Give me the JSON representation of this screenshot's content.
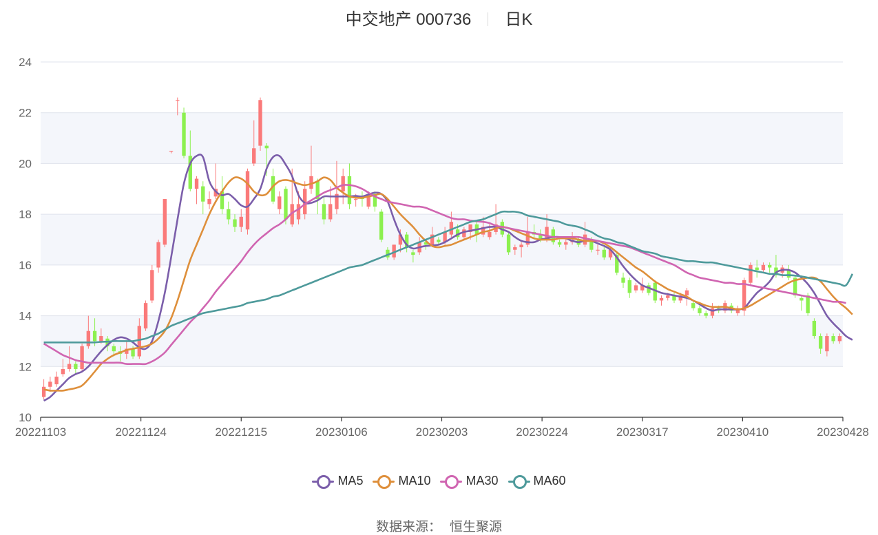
{
  "title": {
    "name": "中交地产 000736",
    "period": "日K"
  },
  "source": {
    "label": "数据来源：",
    "value": "恒生聚源"
  },
  "chart_data": {
    "type": "candlestick",
    "ylim": [
      10,
      24
    ],
    "yticks": [
      10,
      12,
      14,
      16,
      18,
      20,
      22,
      24
    ],
    "grid": true,
    "banded_background": true,
    "xtick_labels": [
      "20221103",
      "20221124",
      "20221215",
      "20230106",
      "20230203",
      "20230224",
      "20230317",
      "20230410",
      "20230428"
    ],
    "colors": {
      "up": "#fa7a7a",
      "down": "#8cf04f"
    },
    "candles": [
      [
        10.8,
        11.2,
        11.5,
        10.7
      ],
      [
        11.2,
        11.4,
        11.6,
        11.0
      ],
      [
        11.3,
        11.6,
        11.8,
        11.2
      ],
      [
        11.7,
        11.9,
        12.3,
        11.6
      ],
      [
        11.9,
        12.1,
        12.8,
        11.8
      ],
      [
        12.1,
        11.9,
        12.2,
        11.7
      ],
      [
        11.9,
        12.8,
        12.9,
        11.8
      ],
      [
        12.8,
        13.4,
        14.0,
        12.7
      ],
      [
        13.4,
        13.0,
        13.9,
        12.8
      ],
      [
        13.0,
        13.2,
        13.5,
        12.9
      ],
      [
        13.1,
        12.8,
        13.2,
        12.6
      ],
      [
        12.8,
        12.6,
        12.9,
        12.4
      ],
      [
        12.6,
        12.5,
        12.8,
        12.2
      ],
      [
        12.5,
        12.7,
        13.0,
        12.3
      ],
      [
        12.7,
        12.4,
        12.8,
        12.3
      ],
      [
        12.4,
        13.6,
        13.9,
        12.3
      ],
      [
        13.5,
        14.5,
        14.6,
        13.4
      ],
      [
        14.6,
        15.8,
        16.0,
        14.5
      ],
      [
        15.9,
        16.9,
        17.0,
        15.7
      ],
      [
        16.8,
        18.6,
        18.6,
        16.7
      ],
      [
        20.5,
        20.5,
        20.5,
        20.4
      ],
      [
        22.5,
        22.5,
        22.6,
        21.9
      ],
      [
        22.0,
        20.3,
        22.2,
        20.2
      ],
      [
        20.3,
        19.0,
        21.3,
        18.9
      ],
      [
        19.0,
        19.4,
        19.5,
        18.4
      ],
      [
        19.1,
        18.5,
        19.3,
        18.0
      ],
      [
        18.4,
        18.6,
        18.9,
        18.2
      ],
      [
        18.7,
        19.0,
        20.0,
        18.6
      ],
      [
        18.9,
        18.2,
        19.5,
        18.0
      ],
      [
        18.2,
        17.8,
        18.5,
        17.6
      ],
      [
        17.8,
        17.5,
        18.0,
        17.3
      ],
      [
        17.5,
        17.9,
        18.2,
        17.3
      ],
      [
        17.4,
        19.7,
        19.8,
        17.2
      ],
      [
        20.0,
        20.6,
        21.7,
        19.9
      ],
      [
        20.7,
        22.5,
        22.6,
        20.5
      ],
      [
        20.7,
        20.6,
        20.8,
        19.5
      ],
      [
        19.5,
        18.5,
        19.8,
        18.4
      ],
      [
        18.2,
        18.7,
        18.9,
        18.0
      ],
      [
        19.0,
        17.8,
        19.1,
        17.6
      ],
      [
        17.6,
        18.4,
        19.8,
        17.5
      ],
      [
        17.8,
        18.4,
        18.9,
        17.6
      ],
      [
        18.0,
        19.0,
        19.3,
        17.8
      ],
      [
        19.0,
        19.5,
        20.7,
        18.8
      ],
      [
        19.3,
        18.6,
        19.4,
        18.0
      ],
      [
        18.4,
        17.8,
        18.7,
        17.6
      ],
      [
        17.8,
        18.4,
        19.1,
        17.7
      ],
      [
        18.2,
        18.8,
        20.1,
        18.0
      ],
      [
        18.9,
        19.5,
        19.8,
        18.4
      ],
      [
        19.5,
        18.4,
        20.0,
        18.2
      ],
      [
        18.6,
        18.6,
        18.8,
        18.3
      ],
      [
        18.7,
        18.6,
        18.9,
        18.3
      ],
      [
        18.3,
        18.8,
        18.9,
        18.2
      ],
      [
        18.8,
        18.3,
        18.9,
        18.1
      ],
      [
        18.1,
        17.0,
        18.2,
        16.9
      ],
      [
        16.6,
        16.3,
        16.7,
        16.2
      ],
      [
        16.3,
        16.8,
        16.8,
        16.2
      ],
      [
        16.8,
        17.2,
        17.4,
        16.5
      ],
      [
        17.2,
        16.7,
        17.3,
        16.5
      ],
      [
        16.5,
        16.4,
        16.6,
        16.1
      ],
      [
        16.5,
        16.9,
        17.1,
        16.4
      ],
      [
        16.9,
        16.8,
        17.0,
        16.6
      ],
      [
        16.8,
        17.2,
        17.5,
        16.7
      ],
      [
        17.0,
        16.9,
        17.1,
        16.8
      ],
      [
        16.9,
        17.3,
        17.5,
        16.8
      ],
      [
        17.2,
        17.7,
        18.1,
        17.1
      ],
      [
        17.4,
        17.1,
        17.6,
        17.0
      ],
      [
        17.1,
        17.4,
        17.5,
        17.0
      ],
      [
        17.3,
        17.6,
        17.6,
        17.0
      ],
      [
        17.6,
        17.2,
        17.7,
        16.9
      ],
      [
        17.2,
        17.5,
        17.9,
        17.1
      ],
      [
        17.1,
        17.3,
        17.6,
        17.0
      ],
      [
        17.3,
        17.6,
        18.4,
        17.2
      ],
      [
        17.7,
        17.2,
        17.8,
        17.1
      ],
      [
        17.2,
        16.5,
        17.3,
        16.4
      ],
      [
        16.6,
        16.7,
        16.8,
        16.4
      ],
      [
        16.7,
        16.8,
        16.9,
        16.3
      ],
      [
        16.8,
        17.3,
        17.9,
        16.7
      ],
      [
        17.3,
        17.2,
        17.6,
        17.0
      ],
      [
        17.2,
        17.0,
        17.4,
        16.9
      ],
      [
        17.0,
        17.5,
        18.0,
        16.9
      ],
      [
        17.4,
        16.9,
        17.5,
        16.8
      ],
      [
        16.9,
        16.8,
        17.0,
        16.7
      ],
      [
        16.8,
        16.9,
        17.1,
        16.6
      ],
      [
        16.9,
        17.0,
        17.3,
        16.8
      ],
      [
        17.0,
        16.8,
        17.1,
        16.7
      ],
      [
        16.8,
        17.2,
        17.7,
        16.7
      ],
      [
        17.0,
        16.6,
        17.1,
        16.5
      ],
      [
        16.6,
        16.6,
        16.8,
        16.4
      ],
      [
        16.6,
        16.3,
        16.7,
        16.2
      ],
      [
        16.3,
        16.6,
        16.7,
        16.2
      ],
      [
        16.4,
        15.7,
        16.5,
        15.6
      ],
      [
        15.5,
        15.3,
        15.7,
        15.1
      ],
      [
        15.4,
        14.9,
        15.5,
        14.7
      ],
      [
        15.0,
        15.2,
        15.3,
        14.9
      ],
      [
        15.0,
        15.2,
        15.5,
        14.9
      ],
      [
        15.2,
        14.9,
        15.3,
        14.8
      ],
      [
        15.3,
        14.6,
        15.4,
        14.5
      ],
      [
        14.6,
        14.7,
        14.8,
        14.4
      ],
      [
        14.7,
        14.8,
        14.9,
        14.6
      ],
      [
        14.8,
        14.6,
        14.9,
        14.5
      ],
      [
        14.6,
        14.8,
        14.9,
        14.5
      ],
      [
        14.8,
        15.0,
        15.1,
        14.4
      ],
      [
        14.5,
        14.3,
        14.6,
        14.2
      ],
      [
        14.3,
        14.1,
        14.4,
        14.0
      ],
      [
        14.1,
        14.0,
        14.2,
        13.9
      ],
      [
        14.0,
        14.3,
        14.5,
        13.9
      ],
      [
        14.3,
        14.2,
        14.4,
        14.1
      ],
      [
        14.2,
        14.5,
        14.6,
        14.1
      ],
      [
        14.4,
        14.2,
        14.5,
        14.1
      ],
      [
        14.1,
        14.3,
        14.4,
        14.0
      ],
      [
        14.2,
        15.4,
        15.5,
        14.0
      ],
      [
        15.3,
        16.0,
        16.1,
        15.2
      ],
      [
        15.9,
        15.8,
        16.2,
        15.5
      ],
      [
        15.8,
        16.0,
        16.1,
        15.7
      ],
      [
        16.0,
        15.9,
        16.1,
        15.7
      ],
      [
        15.9,
        15.6,
        16.4,
        15.5
      ],
      [
        15.7,
        15.9,
        16.0,
        15.5
      ],
      [
        15.8,
        15.5,
        16.0,
        15.4
      ],
      [
        15.5,
        14.8,
        15.6,
        14.7
      ],
      [
        14.7,
        14.6,
        14.8,
        14.2
      ],
      [
        14.8,
        14.1,
        14.9,
        14.0
      ],
      [
        13.8,
        13.2,
        13.9,
        13.1
      ],
      [
        13.2,
        12.7,
        13.3,
        12.5
      ],
      [
        12.6,
        13.2,
        13.3,
        12.4
      ],
      [
        13.2,
        13.0,
        13.3,
        12.9
      ],
      [
        13.0,
        13.2,
        13.3,
        12.9
      ]
    ],
    "series": [
      {
        "name": "MA5",
        "color": "#7b5eaa",
        "values": [
          10.65,
          10.8,
          11.05,
          11.3,
          11.55,
          11.7,
          11.8,
          12.0,
          12.3,
          12.6,
          12.85,
          13.05,
          13.15,
          13.1,
          12.95,
          12.75,
          12.7,
          13.0,
          13.8,
          14.9,
          16.3,
          17.8,
          19.2,
          20.0,
          20.3,
          20.25,
          19.3,
          18.9,
          18.75,
          18.8,
          18.6,
          18.35,
          18.3,
          18.6,
          19.0,
          19.8,
          20.25,
          20.3,
          19.95,
          19.5,
          18.75,
          18.45,
          18.45,
          18.55,
          18.7,
          18.7,
          18.7,
          18.7,
          18.7,
          18.72,
          18.7,
          18.78,
          18.85,
          18.8,
          18.5,
          17.8,
          17.2,
          16.8,
          16.65,
          16.7,
          16.75,
          16.77,
          16.8,
          16.9,
          17.05,
          17.2,
          17.3,
          17.35,
          17.4,
          17.45,
          17.5,
          17.5,
          17.4,
          17.3,
          17.1,
          16.95,
          16.9,
          16.9,
          17.0,
          17.05,
          17.1,
          17.1,
          17.05,
          16.95,
          16.9,
          16.95,
          16.95,
          16.85,
          16.75,
          16.6,
          16.3,
          15.95,
          15.65,
          15.4,
          15.2,
          15.1,
          15.0,
          14.9,
          14.85,
          14.8,
          14.75,
          14.7,
          14.6,
          14.45,
          14.3,
          14.2,
          14.25,
          14.25,
          14.25,
          14.25,
          14.3,
          14.6,
          14.9,
          15.1,
          15.35,
          15.7,
          15.8,
          15.8,
          15.7,
          15.5,
          15.25,
          14.9,
          14.45,
          14.0,
          13.7,
          13.45,
          13.2,
          13.05
        ]
      },
      {
        "name": "MA10",
        "color": "#de8f3b",
        "values": [
          11.1,
          11.05,
          11.05,
          11.05,
          11.1,
          11.15,
          11.25,
          11.5,
          11.8,
          12.1,
          12.3,
          12.45,
          12.55,
          12.65,
          12.7,
          12.75,
          12.8,
          12.9,
          13.1,
          13.4,
          13.9,
          14.6,
          15.4,
          16.2,
          16.8,
          17.4,
          18.0,
          18.5,
          18.9,
          19.25,
          19.45,
          19.4,
          19.2,
          18.9,
          18.75,
          18.8,
          19.1,
          19.3,
          19.35,
          19.3,
          19.2,
          19.15,
          19.2,
          19.3,
          19.45,
          19.35,
          19.05,
          18.85,
          18.7,
          18.65,
          18.65,
          18.7,
          18.75,
          18.8,
          18.6,
          18.3,
          18.0,
          17.75,
          17.5,
          17.2,
          16.95,
          16.75,
          16.7,
          16.75,
          16.8,
          16.9,
          17.0,
          17.1,
          17.2,
          17.3,
          17.35,
          17.45,
          17.5,
          17.45,
          17.35,
          17.25,
          17.15,
          17.05,
          17.0,
          17.0,
          17.0,
          17.05,
          17.05,
          17.05,
          17.0,
          16.95,
          16.95,
          16.95,
          16.85,
          16.7,
          16.5,
          16.3,
          16.1,
          15.9,
          15.75,
          15.55,
          15.35,
          15.2,
          15.05,
          14.95,
          14.85,
          14.75,
          14.6,
          14.5,
          14.4,
          14.35,
          14.35,
          14.35,
          14.3,
          14.25,
          14.3,
          14.4,
          14.55,
          14.7,
          14.85,
          15.0,
          15.15,
          15.3,
          15.4,
          15.45,
          15.5,
          15.5,
          15.35,
          15.05,
          14.75,
          14.5,
          14.3,
          14.05
        ]
      },
      {
        "name": "MA30",
        "color": "#d065b1",
        "values": [
          12.9,
          12.75,
          12.6,
          12.45,
          12.35,
          12.25,
          12.2,
          12.15,
          12.15,
          12.15,
          12.15,
          12.15,
          12.15,
          12.1,
          12.1,
          12.1,
          12.1,
          12.2,
          12.35,
          12.55,
          12.85,
          13.15,
          13.45,
          13.75,
          14.0,
          14.3,
          14.6,
          14.95,
          15.25,
          15.55,
          15.85,
          16.15,
          16.5,
          16.8,
          17.05,
          17.25,
          17.45,
          17.6,
          17.8,
          18.05,
          18.2,
          18.4,
          18.55,
          18.7,
          18.85,
          18.95,
          19.05,
          19.15,
          19.15,
          19.1,
          19.0,
          18.85,
          18.7,
          18.6,
          18.5,
          18.45,
          18.4,
          18.35,
          18.3,
          18.3,
          18.25,
          18.15,
          18.05,
          17.95,
          17.85,
          17.8,
          17.8,
          17.75,
          17.72,
          17.7,
          17.65,
          17.55,
          17.5,
          17.45,
          17.4,
          17.35,
          17.3,
          17.25,
          17.2,
          17.15,
          17.1,
          17.1,
          17.1,
          17.1,
          17.1,
          17.05,
          17.0,
          16.95,
          16.9,
          16.85,
          16.8,
          16.75,
          16.7,
          16.6,
          16.5,
          16.4,
          16.3,
          16.2,
          16.1,
          16.0,
          15.85,
          15.7,
          15.6,
          15.5,
          15.45,
          15.4,
          15.35,
          15.3,
          15.3,
          15.25,
          15.25,
          15.2,
          15.15,
          15.1,
          15.05,
          15.0,
          14.95,
          14.9,
          14.85,
          14.8,
          14.75,
          14.7,
          14.65,
          14.6,
          14.55,
          14.55,
          14.5
        ]
      },
      {
        "name": "MA60",
        "color": "#4e9a9b",
        "values": [
          12.95,
          12.95,
          12.95,
          12.95,
          12.95,
          12.95,
          12.95,
          12.95,
          12.95,
          12.97,
          12.98,
          13.0,
          13.0,
          13.0,
          13.0,
          13.05,
          13.1,
          13.2,
          13.3,
          13.45,
          13.6,
          13.7,
          13.8,
          13.9,
          14.0,
          14.1,
          14.15,
          14.2,
          14.25,
          14.3,
          14.35,
          14.4,
          14.5,
          14.55,
          14.6,
          14.65,
          14.75,
          14.8,
          14.9,
          15.0,
          15.1,
          15.2,
          15.3,
          15.4,
          15.5,
          15.6,
          15.7,
          15.8,
          15.9,
          15.95,
          16.0,
          16.1,
          16.2,
          16.3,
          16.4,
          16.5,
          16.6,
          16.7,
          16.8,
          16.9,
          17.0,
          17.1,
          17.2,
          17.3,
          17.4,
          17.5,
          17.6,
          17.7,
          17.75,
          17.8,
          17.9,
          18.0,
          18.1,
          18.1,
          18.1,
          18.05,
          17.95,
          17.9,
          17.85,
          17.8,
          17.75,
          17.7,
          17.6,
          17.55,
          17.5,
          17.4,
          17.3,
          17.15,
          17.05,
          17.0,
          16.9,
          16.85,
          16.75,
          16.65,
          16.55,
          16.5,
          16.45,
          16.35,
          16.3,
          16.25,
          16.2,
          16.15,
          16.15,
          16.12,
          16.1,
          16.1,
          16.05,
          16.0,
          15.95,
          15.9,
          15.85,
          15.8,
          15.75,
          15.7,
          15.65,
          15.65,
          15.6,
          15.6,
          15.58,
          15.55,
          15.5,
          15.45,
          15.4,
          15.35,
          15.3,
          15.25,
          15.2,
          15.65
        ]
      }
    ]
  }
}
